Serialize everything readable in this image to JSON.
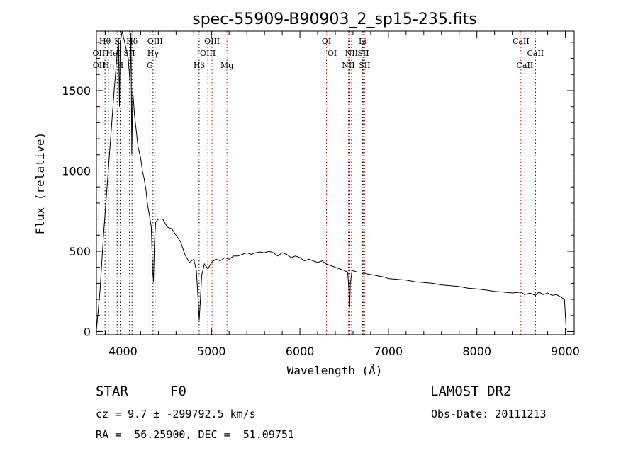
{
  "chart_data": {
    "type": "line",
    "title": "spec-55909-B90903_2_sp15-235.fits",
    "xlabel": "Wavelength (Å)",
    "ylabel": "Flux (relative)",
    "xlim": [
      3700,
      9100
    ],
    "ylim": [
      -20,
      1870
    ],
    "xticks": [
      4000,
      5000,
      6000,
      7000,
      8000,
      9000
    ],
    "yticks": [
      0,
      500,
      1000,
      1500
    ],
    "series": [
      {
        "points": [
          [
            3700,
            10
          ],
          [
            3740,
            250
          ],
          [
            3780,
            600
          ],
          [
            3820,
            900
          ],
          [
            3860,
            1200
          ],
          [
            3900,
            1500
          ],
          [
            3930,
            1700
          ],
          [
            3950,
            1820
          ],
          [
            3960,
            1400
          ],
          [
            3970,
            1800
          ],
          [
            3990,
            1870
          ],
          [
            4020,
            1800
          ],
          [
            4040,
            1750
          ],
          [
            4060,
            1700
          ],
          [
            4080,
            1550
          ],
          [
            4090,
            1860
          ],
          [
            4100,
            1100
          ],
          [
            4110,
            1500
          ],
          [
            4130,
            1350
          ],
          [
            4150,
            1250
          ],
          [
            4170,
            1150
          ],
          [
            4200,
            1080
          ],
          [
            4220,
            1000
          ],
          [
            4240,
            950
          ],
          [
            4260,
            880
          ],
          [
            4280,
            780
          ],
          [
            4300,
            720
          ],
          [
            4320,
            650
          ],
          [
            4335,
            380
          ],
          [
            4345,
            310
          ],
          [
            4355,
            550
          ],
          [
            4370,
            680
          ],
          [
            4400,
            700
          ],
          [
            4450,
            700
          ],
          [
            4500,
            650
          ],
          [
            4550,
            640
          ],
          [
            4600,
            600
          ],
          [
            4650,
            560
          ],
          [
            4700,
            480
          ],
          [
            4750,
            430
          ],
          [
            4800,
            450
          ],
          [
            4830,
            380
          ],
          [
            4850,
            200
          ],
          [
            4862,
            70
          ],
          [
            4875,
            200
          ],
          [
            4890,
            350
          ],
          [
            4920,
            420
          ],
          [
            4960,
            390
          ],
          [
            5000,
            430
          ],
          [
            5050,
            450
          ],
          [
            5100,
            440
          ],
          [
            5150,
            460
          ],
          [
            5200,
            450
          ],
          [
            5250,
            470
          ],
          [
            5300,
            470
          ],
          [
            5350,
            480
          ],
          [
            5400,
            490
          ],
          [
            5450,
            480
          ],
          [
            5500,
            490
          ],
          [
            5550,
            495
          ],
          [
            5600,
            490
          ],
          [
            5650,
            500
          ],
          [
            5700,
            490
          ],
          [
            5750,
            470
          ],
          [
            5800,
            490
          ],
          [
            5850,
            480
          ],
          [
            5900,
            460
          ],
          [
            5950,
            470
          ],
          [
            6000,
            460
          ],
          [
            6050,
            440
          ],
          [
            6100,
            450
          ],
          [
            6150,
            440
          ],
          [
            6200,
            430
          ],
          [
            6250,
            440
          ],
          [
            6300,
            420
          ],
          [
            6350,
            410
          ],
          [
            6400,
            400
          ],
          [
            6450,
            390
          ],
          [
            6500,
            380
          ],
          [
            6540,
            370
          ],
          [
            6555,
            250
          ],
          [
            6563,
            150
          ],
          [
            6570,
            300
          ],
          [
            6590,
            380
          ],
          [
            6650,
            370
          ],
          [
            6700,
            370
          ],
          [
            6750,
            360
          ],
          [
            6800,
            355
          ],
          [
            6850,
            350
          ],
          [
            6900,
            345
          ],
          [
            6950,
            340
          ],
          [
            7000,
            330
          ],
          [
            7100,
            325
          ],
          [
            7200,
            320
          ],
          [
            7300,
            310
          ],
          [
            7400,
            305
          ],
          [
            7500,
            300
          ],
          [
            7600,
            290
          ],
          [
            7700,
            285
          ],
          [
            7800,
            280
          ],
          [
            7900,
            270
          ],
          [
            8000,
            265
          ],
          [
            8100,
            258
          ],
          [
            8200,
            250
          ],
          [
            8300,
            245
          ],
          [
            8400,
            240
          ],
          [
            8500,
            245
          ],
          [
            8540,
            230
          ],
          [
            8600,
            240
          ],
          [
            8660,
            225
          ],
          [
            8700,
            245
          ],
          [
            8750,
            230
          ],
          [
            8800,
            240
          ],
          [
            8850,
            225
          ],
          [
            8900,
            230
          ],
          [
            8950,
            215
          ],
          [
            8990,
            200
          ],
          [
            9005,
            60
          ],
          [
            9010,
            10
          ]
        ]
      }
    ],
    "line_labels": [
      {
        "text": "Hθ",
        "x": 3797,
        "row": 0
      },
      {
        "text": "K",
        "x": 3934,
        "row": 0
      },
      {
        "text": "Hδ",
        "x": 4102,
        "row": 0
      },
      {
        "text": "OIII",
        "x": 4363,
        "row": 0
      },
      {
        "text": "OIII",
        "x": 5007,
        "row": 0
      },
      {
        "text": "OI",
        "x": 6300,
        "row": 0
      },
      {
        "text": "Li",
        "x": 6708,
        "row": 0
      },
      {
        "text": "CaII",
        "x": 8498,
        "row": 0
      },
      {
        "text": "OII",
        "x": 3727,
        "row": 1
      },
      {
        "text": "HeI",
        "x": 3889,
        "row": 1
      },
      {
        "text": "SII",
        "x": 4072,
        "row": 1
      },
      {
        "text": "Hγ",
        "x": 4340,
        "row": 1
      },
      {
        "text": "OIII",
        "x": 4959,
        "row": 1
      },
      {
        "text": "OI",
        "x": 6364,
        "row": 1
      },
      {
        "text": "NII",
        "x": 6583,
        "row": 1
      },
      {
        "text": "SII",
        "x": 6716,
        "row": 1
      },
      {
        "text": "CaII",
        "x": 8662,
        "row": 1
      },
      {
        "text": "OII",
        "x": 3729,
        "row": 2
      },
      {
        "text": "Hη",
        "x": 3835,
        "row": 2
      },
      {
        "text": "H",
        "x": 3968,
        "row": 2
      },
      {
        "text": "G",
        "x": 4304,
        "row": 2
      },
      {
        "text": "Hβ",
        "x": 4861,
        "row": 2
      },
      {
        "text": "Mg",
        "x": 5175,
        "row": 2
      },
      {
        "text": "NII",
        "x": 6548,
        "row": 2
      },
      {
        "text": "SII",
        "x": 6731,
        "row": 2
      },
      {
        "text": "CaII",
        "x": 8542,
        "row": 2
      }
    ],
    "marker_lines": [
      {
        "x": 3727,
        "color": "#d00000"
      },
      {
        "x": 3797,
        "color": "#000000"
      },
      {
        "x": 3835,
        "color": "#000000"
      },
      {
        "x": 3889,
        "color": "#000000"
      },
      {
        "x": 3934,
        "color": "#000000"
      },
      {
        "x": 3968,
        "color": "#000000"
      },
      {
        "x": 4072,
        "color": "#d00000"
      },
      {
        "x": 4102,
        "color": "#000000"
      },
      {
        "x": 4304,
        "color": "#000000"
      },
      {
        "x": 4340,
        "color": "#000000"
      },
      {
        "x": 4363,
        "color": "#d00000"
      },
      {
        "x": 4861,
        "color": "#000000"
      },
      {
        "x": 4959,
        "color": "#d00000"
      },
      {
        "x": 5007,
        "color": "#d00000"
      },
      {
        "x": 5175,
        "color": "#d00000"
      },
      {
        "x": 6300,
        "color": "#d00000"
      },
      {
        "x": 6364,
        "color": "#000000"
      },
      {
        "x": 6548,
        "color": "#d00000"
      },
      {
        "x": 6563,
        "color": "#000000"
      },
      {
        "x": 6583,
        "color": "#d00000"
      },
      {
        "x": 6708,
        "color": "#000000"
      },
      {
        "x": 6716,
        "color": "#d00000"
      },
      {
        "x": 6731,
        "color": "#d00000"
      },
      {
        "x": 8498,
        "color": "#d00000"
      },
      {
        "x": 8542,
        "color": "#000000"
      },
      {
        "x": 8662,
        "color": "#000000"
      }
    ]
  },
  "footer": {
    "object_type": "STAR",
    "subclass": "F0",
    "survey": "LAMOST DR2",
    "redshift": "cz = 9.7 ± -299792.5 km/s",
    "obs_date": "Obs-Date: 20111213",
    "coords": "RA =  56.25900, DEC =  51.09751"
  }
}
